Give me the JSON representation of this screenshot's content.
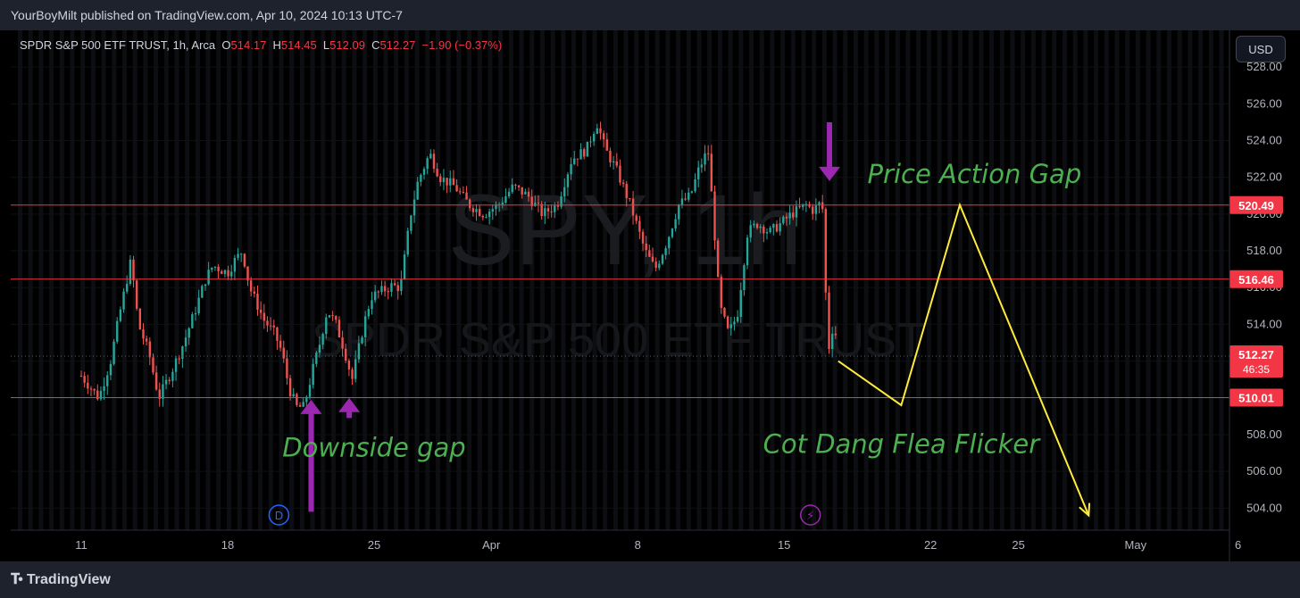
{
  "publisher_line": "YourBoyMilt published on TradingView.com, Apr 10, 2024 10:13 UTC-7",
  "legend": {
    "symbol": "SPDR S&P 500 ETF TRUST, 1h, Arca",
    "o_label": "O",
    "o": "514.17",
    "h_label": "H",
    "h": "514.45",
    "l_label": "L",
    "l": "512.09",
    "c_label": "C",
    "c": "512.27",
    "change": "−1.90 (−0.37%)"
  },
  "currency_button": "USD",
  "watermark": {
    "line1": "SPY, 1h",
    "line2": "SPDR S&P 500 ETF TRUST"
  },
  "brand": "TradingView",
  "markers": {
    "dividend": "D",
    "earnings": "⚡"
  },
  "colors": {
    "up": "#26a69a",
    "down": "#ef5350",
    "hline": "#f23645",
    "annotation_text": "#4caf50",
    "arrow": "#9c27b0",
    "projection": "#ffeb3b"
  },
  "chart_data": {
    "type": "candlestick",
    "ylim": [
      502.8,
      530.0
    ],
    "y_ticks": [
      504,
      506,
      508,
      510,
      512,
      514,
      516,
      518,
      520,
      522,
      524,
      526,
      528
    ],
    "y_tick_labels": [
      "504.00",
      "506.00",
      "508.00",
      "510.00",
      "512.00",
      "514.00",
      "516.00",
      "518.00",
      "520.00",
      "522.00",
      "524.00",
      "526.00",
      "528.00"
    ],
    "x_tick_labels": [
      "11",
      "18",
      "25",
      "Apr",
      "8",
      "15",
      "22",
      "25",
      "May",
      "6"
    ],
    "price_path": [
      [
        0,
        511.2
      ],
      [
        0.12,
        510.0
      ],
      [
        0.2,
        512.0
      ],
      [
        0.26,
        514.5
      ],
      [
        0.3,
        516.0
      ],
      [
        0.34,
        517.5
      ],
      [
        0.39,
        514.0
      ],
      [
        0.46,
        512.5
      ],
      [
        0.53,
        510.0
      ],
      [
        0.62,
        511.5
      ],
      [
        0.7,
        513.0
      ],
      [
        0.78,
        514.8
      ],
      [
        0.85,
        516.5
      ],
      [
        0.9,
        517.2
      ],
      [
        0.95,
        517.0
      ],
      [
        1.0,
        516.8
      ],
      [
        1.05,
        517.5
      ],
      [
        1.1,
        518.0
      ],
      [
        1.15,
        516.0
      ],
      [
        1.25,
        514.2
      ],
      [
        1.32,
        513.5
      ],
      [
        1.37,
        512.5
      ],
      [
        1.42,
        510.5
      ],
      [
        1.47,
        509.5
      ],
      [
        1.52,
        509.5
      ],
      [
        1.58,
        511.5
      ],
      [
        1.63,
        513.0
      ],
      [
        1.68,
        514.8
      ],
      [
        1.74,
        514.0
      ],
      [
        1.8,
        512.5
      ],
      [
        1.85,
        511.0
      ],
      [
        1.89,
        512.5
      ],
      [
        1.93,
        514.0
      ],
      [
        1.98,
        515.5
      ],
      [
        2.05,
        515.8
      ],
      [
        2.12,
        516.1
      ],
      [
        2.18,
        516.0
      ],
      [
        2.25,
        520.0
      ],
      [
        2.3,
        521.8
      ],
      [
        2.38,
        523.3
      ],
      [
        2.45,
        522.0
      ],
      [
        2.55,
        521.5
      ],
      [
        2.65,
        520.5
      ],
      [
        2.75,
        520.0
      ],
      [
        2.85,
        520.5
      ],
      [
        2.95,
        521.5
      ],
      [
        3.05,
        521.0
      ],
      [
        3.15,
        520.0
      ],
      [
        3.25,
        520.5
      ],
      [
        3.35,
        523.0
      ],
      [
        3.45,
        523.5
      ],
      [
        3.52,
        525.0
      ],
      [
        3.58,
        523.5
      ],
      [
        3.65,
        522.5
      ],
      [
        3.75,
        520.5
      ],
      [
        3.85,
        518.0
      ],
      [
        3.92,
        517.0
      ],
      [
        4.0,
        518.5
      ],
      [
        4.08,
        520.5
      ],
      [
        4.16,
        521.0
      ],
      [
        4.22,
        522.5
      ],
      [
        4.28,
        523.5
      ],
      [
        4.32,
        519.5
      ],
      [
        4.36,
        515.0
      ],
      [
        4.42,
        513.5
      ],
      [
        4.48,
        514.5
      ],
      [
        4.55,
        519.0
      ],
      [
        4.62,
        519.5
      ],
      [
        4.7,
        519.0
      ],
      [
        4.78,
        519.5
      ],
      [
        4.85,
        520.0
      ],
      [
        4.95,
        520.5
      ],
      [
        5.0,
        520.2
      ],
      [
        5.06,
        520.7
      ],
      [
        5.1,
        512.5
      ],
      [
        5.14,
        514.2
      ],
      [
        5.17,
        512.27
      ]
    ],
    "horizontal_levels": [
      {
        "value": 520.49,
        "label": "520.49"
      },
      {
        "value": 516.46,
        "label": "516.46"
      },
      {
        "value": 510.01,
        "label": "510.01"
      }
    ],
    "last_price": {
      "value": 512.27,
      "label": "512.27",
      "countdown": "46:35"
    },
    "projection": [
      [
        5.17,
        512.0
      ],
      [
        5.6,
        509.6
      ],
      [
        6.0,
        520.5
      ],
      [
        6.88,
        503.6
      ]
    ],
    "annotations": [
      {
        "text": "Price Action Gap",
        "x": 6.1,
        "y": 521.7
      },
      {
        "text": "Cot Dang Flea Flicker",
        "x": 5.6,
        "y": 507.0
      },
      {
        "text": "Downside gap",
        "x": 2.0,
        "y": 506.8
      }
    ],
    "purple_arrows": [
      {
        "x": 1.57,
        "from": 503.8,
        "to": 509.9
      },
      {
        "x": 1.83,
        "from": 508.9,
        "to": 510.0
      },
      {
        "x": 5.11,
        "from": 525.0,
        "to": 521.8
      }
    ]
  }
}
